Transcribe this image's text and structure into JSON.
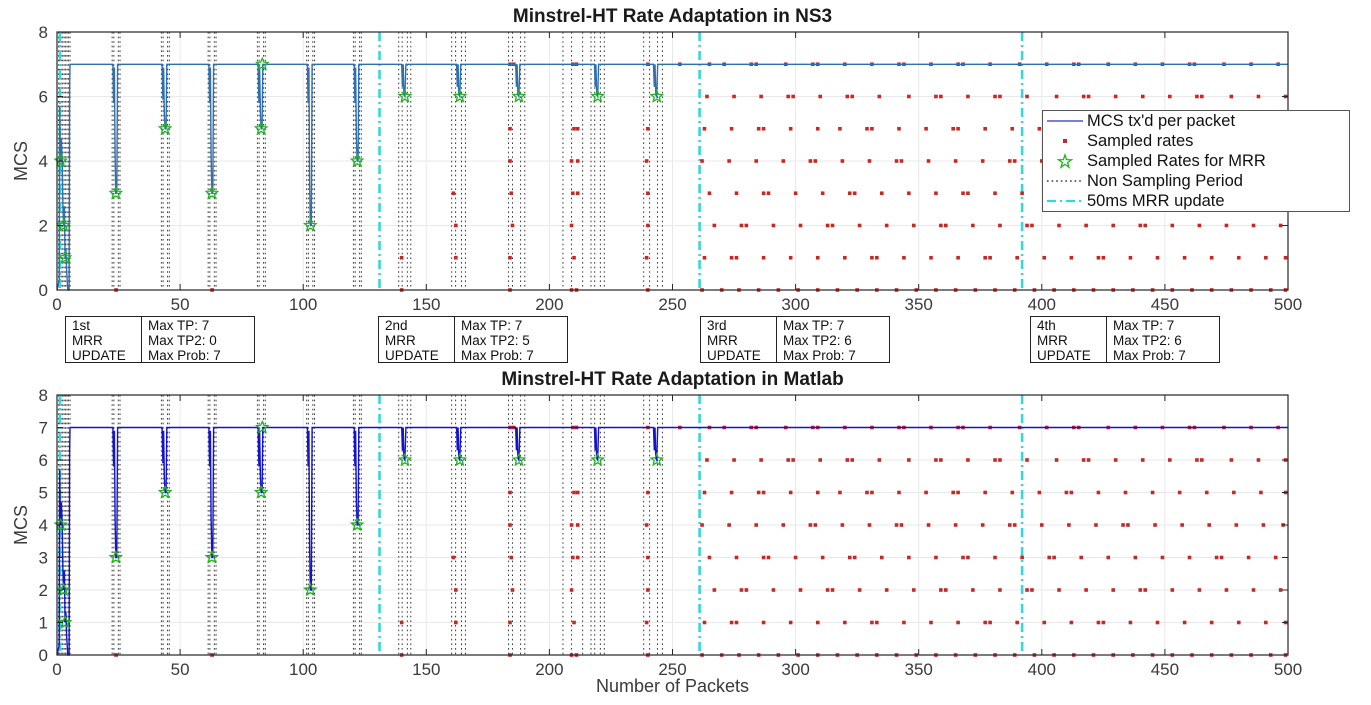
{
  "figure": {
    "ylabel": "MCS"
  },
  "colors": {
    "ns3_line": "#2e6fb0",
    "matlab_line": "#1212cf",
    "sampled_rate": "#c62828",
    "mrr_star": "#1db51d",
    "non_sampling": "#3a3a3a",
    "mrr_update": "#35d8d8",
    "grid": "#e9e9e9",
    "spine": "#262626",
    "tick_label": "#3a3a3a"
  },
  "annotations": [
    {
      "update": "1st\nMRR\nUPDATE",
      "values": "Max TP: 7\nMax TP2: 0\nMax Prob: 7"
    },
    {
      "update": "2nd\nMRR\nUPDATE",
      "values": "Max TP: 7\nMax TP2: 5\nMax Prob: 7"
    },
    {
      "update": "3rd\nMRR\nUPDATE",
      "values": "Max TP: 7\nMax TP2: 6\nMax Prob: 7"
    },
    {
      "update": "4th\nMRR\nUPDATE",
      "values": "Max TP: 7\nMax TP2: 6\nMax Prob: 7"
    }
  ],
  "chart_data": {
    "type": "line",
    "charts": [
      {
        "title": "Minstrel-HT Rate Adaptation in NS3",
        "ylabel": "MCS",
        "xlabel": "",
        "xlim": [
          0,
          500
        ],
        "ylim": [
          0,
          8
        ],
        "xticks": [
          0,
          50,
          100,
          150,
          200,
          250,
          300,
          350,
          400,
          450,
          500
        ],
        "yticks": [
          0,
          2,
          4,
          6,
          8
        ],
        "grid": true,
        "line_color_key": "ns3_line"
      },
      {
        "title": "Minstrel-HT Rate Adaptation in Matlab",
        "ylabel": "MCS",
        "xlabel": "Number of Packets",
        "xlim": [
          0,
          500
        ],
        "ylim": [
          0,
          8
        ],
        "xticks": [
          0,
          50,
          100,
          150,
          200,
          250,
          300,
          350,
          400,
          450,
          500
        ],
        "yticks": [
          0,
          1,
          2,
          3,
          4,
          5,
          6,
          7,
          8
        ],
        "grid": true,
        "line_color_key": "matlab_line"
      }
    ],
    "legend": {
      "position": "top-right-inside-ns3-chart",
      "entries": [
        {
          "label": "MCS tx'd per packet",
          "swatch": "blue-line"
        },
        {
          "label": "Sampled rates",
          "swatch": "red-dot"
        },
        {
          "label": "Sampled Rates for MRR",
          "swatch": "green-star"
        },
        {
          "label": "Non Sampling Period",
          "swatch": "black-dotted"
        },
        {
          "label": "50ms MRR update",
          "swatch": "cyan-dashdot"
        }
      ]
    },
    "shared_series": {
      "note": "Both panels depict near-identical data",
      "mcs_line_points": [
        [
          0,
          0
        ],
        [
          0.9,
          0.3
        ],
        [
          1.1,
          5.7
        ],
        [
          1.3,
          4.5
        ],
        [
          1.5,
          4
        ],
        [
          1.8,
          4.7
        ],
        [
          2.1,
          4
        ],
        [
          2.4,
          2.6
        ],
        [
          2.7,
          2
        ],
        [
          3.0,
          2.6
        ],
        [
          3.3,
          1
        ],
        [
          3.6,
          1.3
        ],
        [
          3.9,
          0.6
        ],
        [
          4.4,
          0
        ],
        [
          4.9,
          0
        ],
        [
          5.1,
          6.2
        ],
        [
          5.3,
          7
        ],
        [
          22.7,
          7
        ],
        [
          23.0,
          5.8
        ],
        [
          23.3,
          6.9
        ],
        [
          23.6,
          4.2
        ],
        [
          23.9,
          3
        ],
        [
          24.3,
          3
        ],
        [
          24.6,
          7
        ],
        [
          42.7,
          7
        ],
        [
          43.0,
          5.9
        ],
        [
          43.3,
          6.9
        ],
        [
          43.6,
          5.5
        ],
        [
          43.9,
          5
        ],
        [
          44.3,
          5
        ],
        [
          44.6,
          7
        ],
        [
          61.7,
          7
        ],
        [
          62.0,
          5.8
        ],
        [
          62.3,
          6.9
        ],
        [
          62.6,
          4.2
        ],
        [
          62.9,
          3
        ],
        [
          63.3,
          3
        ],
        [
          63.6,
          7
        ],
        [
          81.7,
          7
        ],
        [
          82.0,
          5.8
        ],
        [
          82.3,
          6.9
        ],
        [
          82.6,
          5.5
        ],
        [
          82.9,
          5
        ],
        [
          83.3,
          5
        ],
        [
          83.6,
          7
        ],
        [
          101.7,
          7
        ],
        [
          102.0,
          5.8
        ],
        [
          102.3,
          6.9
        ],
        [
          102.6,
          3.4
        ],
        [
          102.9,
          2
        ],
        [
          103.3,
          2
        ],
        [
          103.6,
          7
        ],
        [
          120.7,
          7
        ],
        [
          121.0,
          5.8
        ],
        [
          121.3,
          6.9
        ],
        [
          121.6,
          4.7
        ],
        [
          121.9,
          4
        ],
        [
          122.3,
          4
        ],
        [
          122.6,
          7
        ],
        [
          140.0,
          7
        ],
        [
          140.3,
          6.3
        ],
        [
          140.6,
          7
        ],
        [
          140.9,
          6.05
        ],
        [
          141.3,
          6
        ],
        [
          141.7,
          7
        ],
        [
          162.3,
          7
        ],
        [
          162.6,
          6.3
        ],
        [
          162.9,
          7
        ],
        [
          163.2,
          6.05
        ],
        [
          163.6,
          6
        ],
        [
          164.0,
          7
        ],
        [
          186.3,
          7
        ],
        [
          186.6,
          6.3
        ],
        [
          186.9,
          7
        ],
        [
          187.2,
          6.05
        ],
        [
          187.6,
          6
        ],
        [
          188.0,
          7
        ],
        [
          218.3,
          7
        ],
        [
          218.6,
          6.3
        ],
        [
          218.9,
          7
        ],
        [
          219.2,
          6.05
        ],
        [
          219.6,
          6
        ],
        [
          220.0,
          7
        ],
        [
          242.3,
          7
        ],
        [
          242.6,
          6.3
        ],
        [
          242.9,
          7
        ],
        [
          243.2,
          6.05
        ],
        [
          243.6,
          6
        ],
        [
          244.0,
          7
        ],
        [
          500,
          7
        ]
      ],
      "mrr_sample_stars": [
        [
          1.5,
          4
        ],
        [
          2.7,
          2
        ],
        [
          3.3,
          1
        ],
        [
          23.9,
          3
        ],
        [
          43.9,
          5
        ],
        [
          62.9,
          3
        ],
        [
          82.9,
          5
        ],
        [
          83.4,
          7
        ],
        [
          102.9,
          2
        ],
        [
          121.9,
          4
        ],
        [
          141.3,
          6
        ],
        [
          163.6,
          6
        ],
        [
          187.6,
          6
        ],
        [
          219.6,
          6
        ],
        [
          243.6,
          6
        ]
      ],
      "sampled_rates_mid": [
        [
          24,
          0
        ],
        [
          63,
          0
        ],
        [
          140,
          1
        ],
        [
          140,
          0
        ],
        [
          161,
          3
        ],
        [
          162,
          2
        ],
        [
          162,
          1
        ],
        [
          184,
          7
        ],
        [
          185.5,
          7
        ],
        [
          184,
          5
        ],
        [
          184,
          4
        ],
        [
          184.5,
          3
        ],
        [
          185,
          2
        ],
        [
          184,
          1
        ],
        [
          184,
          0
        ],
        [
          209.5,
          7
        ],
        [
          211,
          7
        ],
        [
          210,
          5
        ],
        [
          211.5,
          5
        ],
        [
          209,
          4
        ],
        [
          211.5,
          4
        ],
        [
          209.5,
          3
        ],
        [
          211.5,
          3
        ],
        [
          209,
          2
        ],
        [
          210,
          1
        ],
        [
          209,
          0
        ],
        [
          211,
          0
        ],
        [
          240,
          7
        ],
        [
          240,
          5
        ],
        [
          239.5,
          4
        ],
        [
          240,
          3
        ],
        [
          240,
          2
        ],
        [
          239.5,
          1
        ],
        [
          240,
          0
        ],
        [
          253,
          7
        ]
      ],
      "sampled_rates_rows": {
        "7": [
          265,
          271,
          282,
          284,
          296,
          307,
          309,
          320,
          331,
          342,
          344,
          355,
          366,
          368,
          379,
          391,
          402,
          413,
          415,
          427,
          438,
          449,
          460,
          462,
          474,
          485,
          496
        ],
        "6": [
          264,
          275,
          286,
          297,
          299,
          310,
          321,
          323,
          334,
          346,
          357,
          359,
          370,
          381,
          383,
          394,
          406,
          417,
          419,
          430,
          441,
          452,
          463,
          465,
          477,
          488,
          499
        ],
        "5": [
          263,
          274,
          285,
          287,
          298,
          309,
          318,
          329,
          331,
          342,
          353,
          364,
          366,
          377,
          388,
          399,
          410,
          412,
          423,
          434,
          445,
          456,
          467,
          478,
          489,
          499
        ],
        "4": [
          262,
          273,
          284,
          295,
          306,
          308,
          319,
          330,
          341,
          343,
          354,
          365,
          376,
          387,
          389,
          400,
          411,
          422,
          433,
          435,
          446,
          457,
          468,
          479,
          490,
          498
        ],
        "3": [
          265,
          276,
          287,
          289,
          300,
          311,
          322,
          324,
          335,
          346,
          357,
          368,
          370,
          381,
          392,
          403,
          405,
          416,
          427,
          438,
          449,
          460,
          471,
          473,
          484,
          495
        ],
        "2": [
          267,
          278,
          280,
          291,
          302,
          313,
          315,
          326,
          337,
          348,
          359,
          361,
          372,
          383,
          394,
          396,
          407,
          418,
          429,
          440,
          442,
          453,
          464,
          475,
          486,
          497
        ],
        "1": [
          263,
          274,
          276,
          287,
          298,
          309,
          320,
          331,
          333,
          344,
          355,
          366,
          377,
          379,
          390,
          401,
          412,
          423,
          425,
          436,
          447,
          458,
          469,
          480,
          491,
          499
        ],
        "0": [
          262,
          270,
          277,
          285,
          293,
          301,
          309,
          317,
          325,
          333,
          341,
          349,
          357,
          365,
          373,
          381,
          389,
          397,
          405,
          413,
          421,
          429,
          437,
          445,
          453,
          461,
          469,
          477,
          485,
          493,
          499
        ]
      },
      "non_sampling_vlines": [
        0.6,
        1.1,
        1.7,
        2.3,
        2.9,
        3.5,
        4.1,
        4.7,
        5.3,
        22.4,
        23.1,
        24.9,
        25.6,
        42.4,
        43.1,
        44.9,
        45.6,
        61.4,
        62.1,
        63.9,
        64.6,
        81.4,
        82.1,
        83.9,
        84.6,
        101.4,
        102.1,
        103.9,
        104.6,
        120.4,
        121.1,
        122.9,
        123.6,
        138.8,
        140.2,
        142.3,
        143.7,
        160.3,
        161.9,
        164.3,
        165.9,
        183.4,
        185.0,
        188.3,
        190.0,
        205.5,
        209.0,
        213.5,
        216.9,
        218.4,
        220.7,
        222.3,
        238.3,
        240.7,
        243.9,
        245.9
      ],
      "mrr_update_vlines": [
        1.2,
        131,
        261,
        392
      ]
    }
  }
}
